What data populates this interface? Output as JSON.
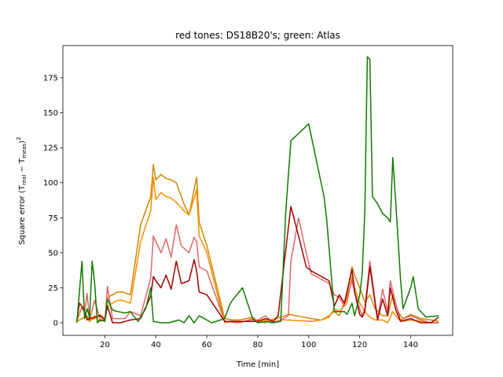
{
  "chart_data": {
    "type": "line",
    "title": "red tones: DS18B20's; green: Atlas",
    "xlabel": "Time [min]",
    "ylabel_main": "Square error (T",
    "ylabel_sub1": "real",
    "ylabel_mid": " − T",
    "ylabel_sub2": "meas",
    "ylabel_close": ")",
    "ylabel_sup": "2",
    "xlim": [
      3.5,
      156.5
    ],
    "ylim": [
      -9,
      198
    ],
    "xticks": [
      20,
      40,
      60,
      80,
      100,
      120,
      140
    ],
    "yticks": [
      0,
      25,
      50,
      75,
      100,
      125,
      150,
      175
    ],
    "grid": false,
    "legend": "none",
    "series": [
      {
        "color": "#cc8800",
        "x": [
          9,
          11,
          13,
          14,
          16,
          18,
          20,
          21,
          25,
          27,
          30,
          34,
          38,
          39,
          40,
          42,
          44,
          46,
          48,
          51,
          53,
          56,
          57,
          60,
          67,
          70,
          73,
          78,
          80,
          83,
          85,
          87,
          89,
          92,
          101,
          105,
          108,
          110,
          112,
          115,
          117,
          118,
          120,
          122,
          124,
          126,
          129,
          131,
          133,
          135,
          137,
          140,
          144,
          148,
          151
        ],
        "y": [
          1,
          3,
          5,
          2,
          3,
          6,
          3,
          18,
          22,
          22,
          20,
          70,
          90,
          113,
          102,
          106,
          103,
          102,
          100,
          85,
          77,
          104,
          72,
          55,
          3,
          2,
          2,
          4,
          1,
          0,
          2,
          3,
          4,
          6,
          3,
          2,
          5,
          8,
          5,
          20,
          40,
          34,
          25,
          15,
          20,
          10,
          5,
          5,
          20,
          8,
          3,
          6,
          3,
          2,
          1
        ]
      },
      {
        "color": "#ff8c00",
        "x": [
          9,
          11,
          13,
          14,
          16,
          18,
          20,
          21,
          25,
          27,
          30,
          34,
          38,
          39,
          40,
          42,
          44,
          46,
          48,
          51,
          53,
          56,
          57,
          60,
          67,
          70,
          73,
          78,
          80,
          83,
          85,
          87,
          89,
          92,
          101,
          105,
          108,
          110,
          112,
          115,
          117,
          118,
          120,
          122,
          124,
          126,
          129,
          131,
          133,
          135,
          137,
          140,
          144,
          148,
          151
        ],
        "y": [
          1,
          12,
          3,
          1,
          5,
          1,
          2,
          12,
          16,
          16,
          14,
          58,
          80,
          104,
          88,
          93,
          90,
          89,
          86,
          80,
          77,
          95,
          62,
          50,
          0,
          1,
          0,
          3,
          1,
          2,
          0,
          1,
          2,
          2,
          1,
          2,
          4,
          10,
          8,
          14,
          33,
          25,
          14,
          8,
          4,
          2,
          2,
          0,
          8,
          3,
          1,
          2,
          1,
          0,
          0
        ]
      },
      {
        "color": "#e06666",
        "x": [
          9,
          11,
          12,
          13,
          14,
          16,
          18,
          20,
          21,
          23,
          26,
          28,
          30,
          34,
          38,
          39,
          40,
          42,
          44,
          46,
          48,
          50,
          53,
          55,
          56,
          57,
          60,
          67,
          72,
          77,
          80,
          83,
          86,
          89,
          92,
          93,
          96,
          99,
          101,
          108,
          110,
          112,
          114,
          117,
          118,
          120,
          121,
          122,
          124,
          127,
          129,
          131,
          132,
          134,
          136,
          140,
          144,
          148,
          151
        ],
        "y": [
          2,
          11,
          7,
          21,
          2,
          16,
          3,
          1,
          26,
          3,
          3,
          3,
          8,
          5,
          32,
          62,
          58,
          50,
          60,
          47,
          70,
          55,
          50,
          61,
          58,
          40,
          37,
          1,
          0,
          2,
          2,
          5,
          0,
          2,
          5,
          44,
          75,
          50,
          35,
          28,
          20,
          18,
          12,
          30,
          22,
          10,
          5,
          10,
          44,
          3,
          24,
          8,
          30,
          15,
          2,
          5,
          2,
          0,
          0
        ]
      },
      {
        "color": "#a00000",
        "x": [
          9,
          10,
          11,
          12,
          13,
          14,
          16,
          18,
          20,
          21,
          23,
          26,
          28,
          30,
          34,
          38,
          39,
          40,
          42,
          44,
          46,
          48,
          50,
          53,
          55,
          56,
          57,
          60,
          67,
          72,
          77,
          80,
          83,
          86,
          88,
          92,
          93,
          96,
          99,
          101,
          108,
          110,
          112,
          114,
          117,
          118,
          120,
          121,
          122,
          124,
          127,
          129,
          131,
          132,
          134,
          136,
          140,
          144,
          148,
          151
        ],
        "y": [
          2,
          14,
          12,
          8,
          2,
          3,
          4,
          5,
          2,
          12,
          0,
          0,
          1,
          2,
          3,
          19,
          33,
          30,
          25,
          34,
          24,
          44,
          28,
          30,
          45,
          37,
          22,
          20,
          1,
          1,
          1,
          1,
          3,
          1,
          5,
          68,
          83,
          62,
          40,
          37,
          30,
          12,
          20,
          14,
          38,
          22,
          6,
          4,
          8,
          40,
          2,
          17,
          5,
          25,
          10,
          1,
          3,
          0,
          0,
          4
        ]
      },
      {
        "color": "#117a00",
        "x": [
          9,
          11,
          12,
          13,
          14,
          15,
          16,
          17,
          18,
          20,
          21,
          23,
          25,
          28,
          30,
          33,
          36,
          38,
          39,
          42,
          45,
          49,
          51,
          53,
          55,
          57,
          62,
          67,
          69,
          70,
          74,
          78,
          80,
          83,
          86,
          89,
          91,
          93,
          100,
          106,
          107,
          110,
          112,
          114,
          115,
          117,
          118,
          120,
          121,
          122,
          123,
          124,
          125,
          127,
          129,
          131,
          132,
          133,
          134,
          136,
          137,
          140,
          141,
          143,
          146,
          151
        ],
        "y": [
          0,
          44,
          3,
          10,
          4,
          44,
          28,
          0,
          2,
          1,
          17,
          9,
          8,
          7,
          8,
          1,
          10,
          25,
          1,
          0,
          0,
          2,
          0,
          5,
          0,
          5,
          0,
          3,
          13,
          16,
          25,
          3,
          0,
          1,
          0,
          1,
          80,
          130,
          142,
          90,
          75,
          8,
          8,
          8,
          6,
          14,
          5,
          20,
          35,
          80,
          190,
          188,
          90,
          85,
          78,
          75,
          72,
          118,
          90,
          32,
          10,
          25,
          33,
          10,
          4,
          5
        ]
      }
    ]
  }
}
